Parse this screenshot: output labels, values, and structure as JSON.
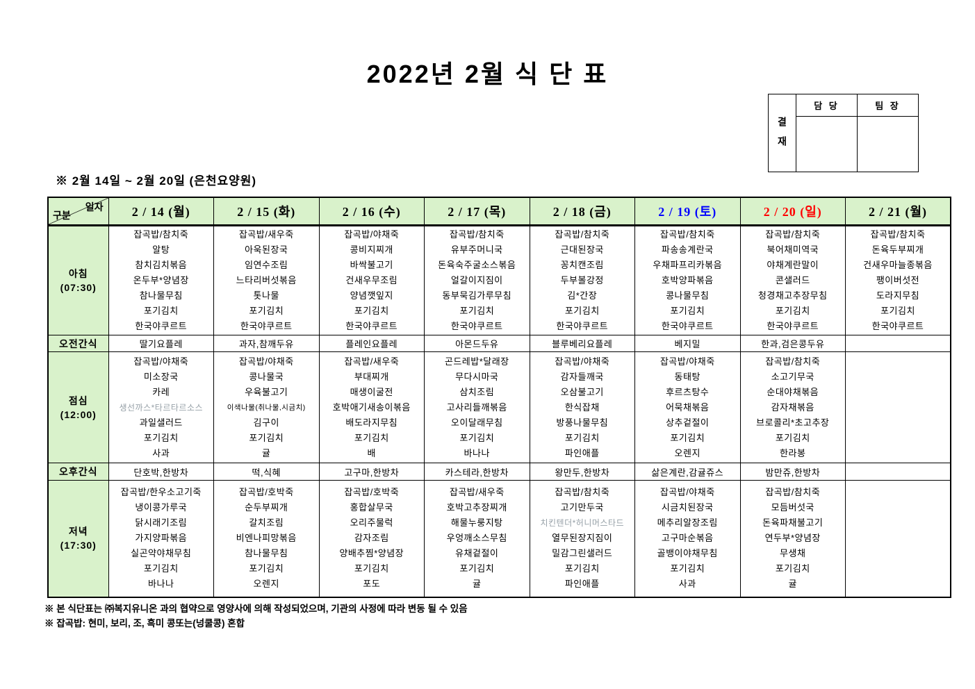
{
  "title": "2022년 2월 식 단 표",
  "approval": {
    "stamp": "결재",
    "roles": [
      "담 당",
      "팀 장"
    ]
  },
  "subtitle": "※ 2월 14일 ~ 2월 20일 (은천요양원)",
  "colors": {
    "header_green": "#d9f2cb",
    "saturday_blue": "#0000ff",
    "sunday_red": "#ff0000",
    "muted_gray": "#97a1a8",
    "black": "#000000"
  },
  "muted_items": [
    "생선까스*타르타르소스",
    "치킨텐더*허니머스타드"
  ],
  "table": {
    "corner": {
      "top": "일자",
      "bottom": "구분"
    },
    "columns": [
      {
        "label": "2 / 14 (월)",
        "color": "#000000"
      },
      {
        "label": "2 / 15 (화)",
        "color": "#000000"
      },
      {
        "label": "2 / 16 (수)",
        "color": "#000000"
      },
      {
        "label": "2 / 17 (목)",
        "color": "#000000"
      },
      {
        "label": "2 / 18 (금)",
        "color": "#000000"
      },
      {
        "label": "2 / 19 (토)",
        "color": "#0000ff"
      },
      {
        "label": "2 / 20 (일)",
        "color": "#ff0000"
      },
      {
        "label": "2 / 21 (월)",
        "color": "#000000"
      }
    ],
    "rows": [
      {
        "label": "아침\n(07:30)",
        "type": "meal",
        "cells": [
          [
            "잡곡밥/참치죽",
            "알탕",
            "참치김치볶음",
            "온두부*양념장",
            "참나물무침",
            "포기김치",
            "한국야쿠르트"
          ],
          [
            "잡곡밥/새우죽",
            "아욱된장국",
            "임연수조림",
            "느타리버섯볶음",
            "톳나물",
            "포기김치",
            "한국야쿠르트"
          ],
          [
            "잡곡밥/야채죽",
            "콩비지찌개",
            "바싹불고기",
            "건새우무조림",
            "양념깻잎지",
            "포기김치",
            "한국야쿠르트"
          ],
          [
            "잡곡밥/참치죽",
            "유부주머니국",
            "돈육숙주굴소스볶음",
            "얼갈이지짐이",
            "동부묵김가루무침",
            "포기김치",
            "한국야쿠르트"
          ],
          [
            "잡곡밥/참치죽",
            "근대된장국",
            "꽁치캔조림",
            "두부볼강정",
            "김*간장",
            "포기김치",
            "한국야쿠르트"
          ],
          [
            "잡곡밥/참치죽",
            "파송송계란국",
            "우채파프리카볶음",
            "호박양파볶음",
            "콩나물무침",
            "포기김치",
            "한국야쿠르트"
          ],
          [
            "잡곡밥/참치죽",
            "북어채미역국",
            "야채계란말이",
            "콘샐러드",
            "청경채고추장무침",
            "포기김치",
            "한국야쿠르트"
          ],
          [
            "잡곡밥/참치죽",
            "돈육두부찌개",
            "건새우마늘종볶음",
            "팽이버섯전",
            "도라지무침",
            "포기김치",
            "한국야쿠르트"
          ]
        ]
      },
      {
        "label": "오전간식",
        "type": "snack",
        "cells": [
          "딸기요플레",
          "과자,참깨두유",
          "플레인요플레",
          "아몬드두유",
          "블루베리요플레",
          "베지밀",
          "한과,검은콩두유",
          ""
        ]
      },
      {
        "label": "점심\n(12:00)",
        "type": "meal",
        "cells": [
          [
            "잡곡밥/야채죽",
            "미소장국",
            "카레",
            "생선까스*타르타르소스",
            "과일샐러드",
            "포기김치",
            "사과"
          ],
          [
            "잡곡밥/야채죽",
            "콩나물국",
            "우육불고기",
            "이색나물(취나물,시금치)",
            "김구이",
            "포기김치",
            "귤"
          ],
          [
            "잡곡밥/새우죽",
            "부대찌개",
            "매생이굴전",
            "호박애기새송이볶음",
            "배도라지무침",
            "포기김치",
            "배"
          ],
          [
            "곤드레밥*달래장",
            "무다시마국",
            "삼치조림",
            "고사리들깨볶음",
            "오이달래무침",
            "포기김치",
            "바나나"
          ],
          [
            "잡곡밥/야채죽",
            "감자들깨국",
            "오삼불고기",
            "한식잡채",
            "방풍나물무침",
            "포기김치",
            "파인애플"
          ],
          [
            "잡곡밥/야채죽",
            "동태탕",
            "후르츠탕수",
            "어묵채볶음",
            "상추겉절이",
            "포기김치",
            "오렌지"
          ],
          [
            "잡곡밥/참치죽",
            "소고기무국",
            "순대야채볶음",
            "감자채볶음",
            "브로콜리*초고추장",
            "포기김치",
            "한라봉"
          ],
          []
        ]
      },
      {
        "label": "오후간식",
        "type": "snack",
        "cells": [
          "단호박,한방차",
          "떡,식혜",
          "고구마,한방차",
          "카스테라,한방차",
          "왕만두,한방차",
          "삶은계란,감귤쥬스",
          "밤만쥬,한방차",
          ""
        ]
      },
      {
        "label": "저녁\n(17:30)",
        "type": "meal",
        "cells": [
          [
            "잡곡밥/한우소고기죽",
            "냉이콩가루국",
            "닭시래기조림",
            "가지양파볶음",
            "실곤약야채무침",
            "포기김치",
            "바나나"
          ],
          [
            "잡곡밥/호박죽",
            "순두부찌개",
            "갈치조림",
            "비엔나피망볶음",
            "참나물무침",
            "포기김치",
            "오렌지"
          ],
          [
            "잡곡밥/호박죽",
            "홍합살무국",
            "오리주물럭",
            "감자조림",
            "양배추찜*양념장",
            "포기김치",
            "포도"
          ],
          [
            "잡곡밥/새우죽",
            "호박고추장찌개",
            "해물누룽지탕",
            "우엉깨소스무침",
            "유채겉절이",
            "포기김치",
            "귤"
          ],
          [
            "잡곡밥/참치죽",
            "고기만두국",
            "치킨텐더*허니머스타드",
            "열무된장지짐이",
            "밀감그린샐러드",
            "포기김치",
            "파인애플"
          ],
          [
            "잡곡밥/야채죽",
            "시금치된장국",
            "메추리알장조림",
            "고구마순볶음",
            "골뱅이야채무침",
            "포기김치",
            "사과"
          ],
          [
            "잡곡밥/참치죽",
            "모듬버섯국",
            "돈육파채불고기",
            "연두부*양념장",
            "무생채",
            "포기김치",
            "귤"
          ],
          []
        ]
      }
    ]
  },
  "notes": [
    "※ 본 식단표는 ㈜복지유니온 과의 협약으로 영양사에 의해 작성되었으며, 기관의 사정에 따라 변동 될 수 있음",
    "※ 잡곡밥: 현미, 보리, 조, 흑미 콩또는(넝쿨콩) 혼합"
  ]
}
